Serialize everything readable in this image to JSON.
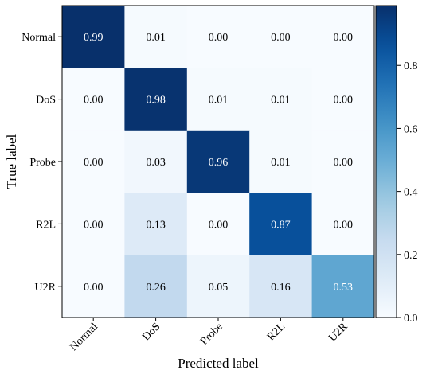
{
  "chart_data": {
    "type": "heatmap",
    "title": "",
    "xlabel": "Predicted label",
    "ylabel": "True label",
    "x_categories": [
      "Normal",
      "DoS",
      "Probe",
      "R2L",
      "U2R"
    ],
    "y_categories": [
      "Normal",
      "DoS",
      "Probe",
      "R2L",
      "U2R"
    ],
    "values": [
      [
        0.99,
        0.01,
        0.0,
        0.0,
        0.0
      ],
      [
        0.0,
        0.98,
        0.01,
        0.01,
        0.0
      ],
      [
        0.0,
        0.03,
        0.96,
        0.01,
        0.0
      ],
      [
        0.0,
        0.13,
        0.0,
        0.87,
        0.0
      ],
      [
        0.0,
        0.26,
        0.05,
        0.16,
        0.53
      ]
    ],
    "value_labels": [
      [
        "0.99",
        "0.01",
        "0.00",
        "0.00",
        "0.00"
      ],
      [
        "0.00",
        "0.98",
        "0.01",
        "0.01",
        "0.00"
      ],
      [
        "0.00",
        "0.03",
        "0.96",
        "0.01",
        "0.00"
      ],
      [
        "0.00",
        "0.13",
        "0.00",
        "0.87",
        "0.00"
      ],
      [
        "0.00",
        "0.26",
        "0.05",
        "0.16",
        "0.53"
      ]
    ],
    "colorbar": {
      "range": [
        0.0,
        0.99
      ],
      "ticks": [
        0.0,
        0.2,
        0.4,
        0.6,
        0.8
      ],
      "tick_labels": [
        "0.0",
        "0.2",
        "0.4",
        "0.6",
        "0.8"
      ]
    },
    "colormap": "Blues",
    "colors": {
      "low": "#f7fbff",
      "high": "#08306b",
      "text_dark": "#000000",
      "text_light": "#ffffff"
    }
  }
}
